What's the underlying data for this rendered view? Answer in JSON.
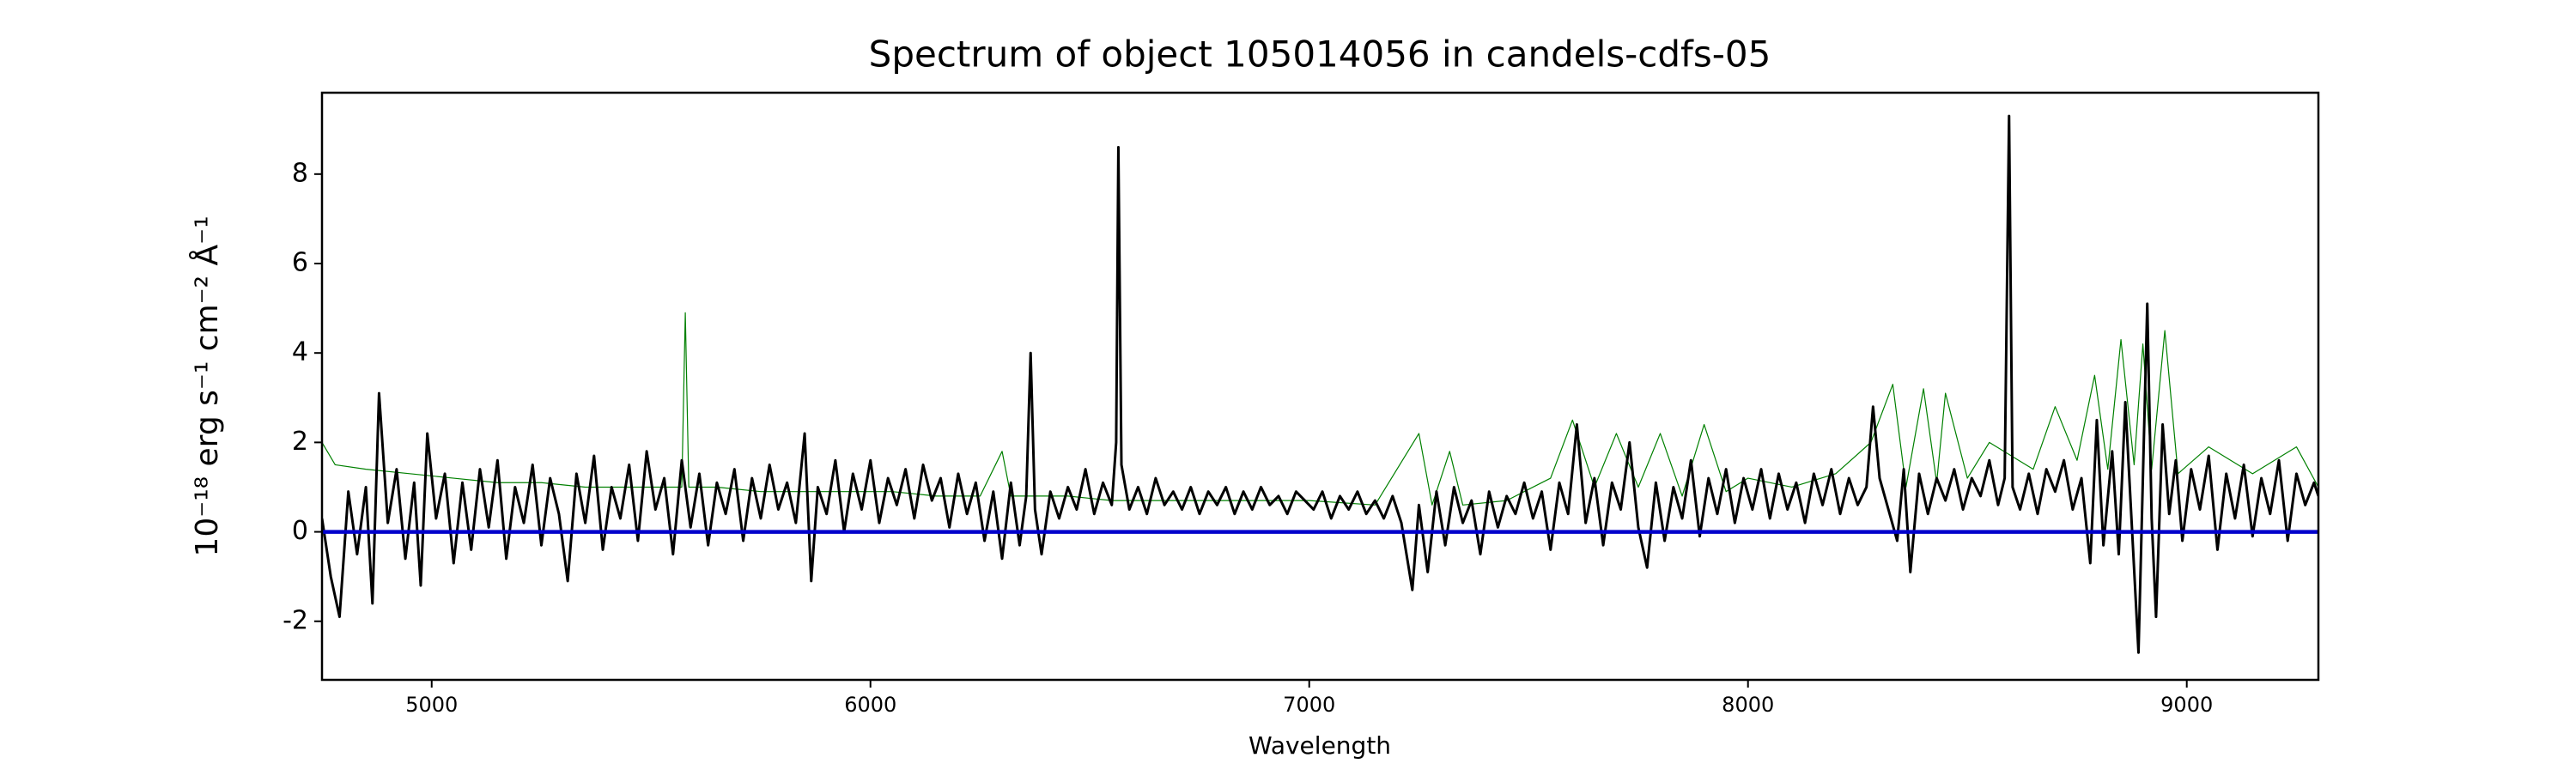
{
  "chart_data": {
    "type": "line",
    "title": "Spectrum of object 105014056 in candels-cdfs-05",
    "x_label": "Wavelength",
    "y_label": "10⁻¹⁸ erg s⁻¹ cm⁻² Å⁻¹",
    "xlim": [
      4750,
      9300
    ],
    "xticks": [
      5000,
      6000,
      7000,
      8000,
      9000
    ],
    "ylim": [
      -3.31,
      9.82
    ],
    "yticks": [
      -2,
      0,
      2,
      4,
      6,
      8
    ],
    "series": [
      {
        "color": "#008000",
        "width": 1.2,
        "x": [
          4750,
          4780,
          4850,
          4950,
          5050,
          5150,
          5250,
          5350,
          5450,
          5550,
          5570,
          5578,
          5586,
          5650,
          5750,
          5850,
          5950,
          6050,
          6150,
          6250,
          6300,
          6320,
          6450,
          6550,
          6700,
          6850,
          7000,
          7150,
          7250,
          7280,
          7320,
          7350,
          7450,
          7550,
          7600,
          7650,
          7700,
          7750,
          7800,
          7850,
          7900,
          7950,
          8000,
          8100,
          8200,
          8280,
          8330,
          8360,
          8400,
          8430,
          8450,
          8500,
          8550,
          8650,
          8700,
          8750,
          8790,
          8820,
          8850,
          8880,
          8900,
          8920,
          8950,
          8980,
          9050,
          9150,
          9250,
          9300
        ],
        "values": [
          2.0,
          1.5,
          1.4,
          1.3,
          1.2,
          1.1,
          1.1,
          1.0,
          1.0,
          1.0,
          1.0,
          4.9,
          1.0,
          1.0,
          0.9,
          0.9,
          0.9,
          0.9,
          0.8,
          0.8,
          1.8,
          0.8,
          0.8,
          0.7,
          0.7,
          0.7,
          0.7,
          0.6,
          2.2,
          0.6,
          1.8,
          0.6,
          0.7,
          1.2,
          2.5,
          1.0,
          2.2,
          1.0,
          2.2,
          0.8,
          2.4,
          0.9,
          1.2,
          1.0,
          1.3,
          2.0,
          3.3,
          1.0,
          3.2,
          1.1,
          3.1,
          1.2,
          2.0,
          1.4,
          2.8,
          1.6,
          3.5,
          1.4,
          4.3,
          1.5,
          4.2,
          1.4,
          4.5,
          1.3,
          1.9,
          1.3,
          1.9,
          1.0
        ]
      },
      {
        "color": "#000000",
        "width": 3,
        "x": [
          4750,
          4770,
          4790,
          4810,
          4830,
          4850,
          4865,
          4880,
          4900,
          4920,
          4940,
          4960,
          4975,
          4990,
          5010,
          5030,
          5050,
          5070,
          5090,
          5110,
          5130,
          5150,
          5170,
          5190,
          5210,
          5230,
          5250,
          5270,
          5290,
          5310,
          5330,
          5350,
          5370,
          5390,
          5410,
          5430,
          5450,
          5470,
          5490,
          5510,
          5530,
          5550,
          5570,
          5590,
          5610,
          5630,
          5650,
          5670,
          5690,
          5710,
          5730,
          5750,
          5770,
          5790,
          5810,
          5830,
          5850,
          5865,
          5880,
          5900,
          5920,
          5940,
          5960,
          5980,
          6000,
          6020,
          6040,
          6060,
          6080,
          6100,
          6120,
          6140,
          6160,
          6180,
          6200,
          6220,
          6240,
          6260,
          6280,
          6300,
          6320,
          6340,
          6355,
          6365,
          6375,
          6390,
          6410,
          6430,
          6450,
          6470,
          6490,
          6510,
          6530,
          6550,
          6560,
          6565,
          6572,
          6590,
          6610,
          6630,
          6650,
          6670,
          6690,
          6710,
          6730,
          6750,
          6770,
          6790,
          6810,
          6830,
          6850,
          6870,
          6890,
          6910,
          6930,
          6950,
          6970,
          6990,
          7010,
          7030,
          7050,
          7070,
          7090,
          7110,
          7130,
          7150,
          7170,
          7190,
          7210,
          7235,
          7250,
          7270,
          7290,
          7310,
          7330,
          7350,
          7370,
          7390,
          7410,
          7430,
          7450,
          7470,
          7490,
          7510,
          7530,
          7550,
          7570,
          7590,
          7610,
          7630,
          7650,
          7670,
          7690,
          7710,
          7730,
          7750,
          7770,
          7790,
          7810,
          7830,
          7850,
          7870,
          7890,
          7910,
          7930,
          7950,
          7970,
          7990,
          8010,
          8030,
          8050,
          8070,
          8090,
          8110,
          8130,
          8150,
          8170,
          8190,
          8210,
          8230,
          8250,
          8270,
          8285,
          8300,
          8320,
          8340,
          8355,
          8370,
          8390,
          8410,
          8430,
          8450,
          8470,
          8490,
          8510,
          8530,
          8550,
          8570,
          8585,
          8595,
          8603,
          8620,
          8640,
          8660,
          8680,
          8700,
          8720,
          8740,
          8760,
          8780,
          8795,
          8810,
          8830,
          8845,
          8860,
          8875,
          8890,
          8900,
          8910,
          8920,
          8930,
          8945,
          8960,
          8975,
          8990,
          9010,
          9030,
          9050,
          9070,
          9090,
          9110,
          9130,
          9150,
          9170,
          9190,
          9210,
          9230,
          9250,
          9270,
          9290,
          9300
        ],
        "values": [
          0.3,
          -1.0,
          -1.9,
          0.9,
          -0.5,
          1.0,
          -1.6,
          3.1,
          0.2,
          1.4,
          -0.6,
          1.1,
          -1.2,
          2.2,
          0.3,
          1.3,
          -0.7,
          1.1,
          -0.4,
          1.4,
          0.1,
          1.6,
          -0.6,
          1.0,
          0.2,
          1.5,
          -0.3,
          1.2,
          0.4,
          -1.1,
          1.3,
          0.2,
          1.7,
          -0.4,
          1.0,
          0.3,
          1.5,
          -0.2,
          1.8,
          0.5,
          1.2,
          -0.5,
          1.6,
          0.1,
          1.3,
          -0.3,
          1.1,
          0.4,
          1.4,
          -0.2,
          1.2,
          0.3,
          1.5,
          0.5,
          1.1,
          0.2,
          2.2,
          -1.1,
          1.0,
          0.4,
          1.6,
          0.0,
          1.3,
          0.5,
          1.6,
          0.2,
          1.2,
          0.6,
          1.4,
          0.3,
          1.5,
          0.7,
          1.2,
          0.1,
          1.3,
          0.4,
          1.1,
          -0.2,
          0.9,
          -0.6,
          1.1,
          -0.3,
          0.8,
          4.0,
          0.5,
          -0.5,
          0.9,
          0.3,
          1.0,
          0.5,
          1.4,
          0.4,
          1.1,
          0.6,
          2.0,
          8.6,
          1.5,
          0.5,
          1.0,
          0.4,
          1.2,
          0.6,
          0.9,
          0.5,
          1.0,
          0.4,
          0.9,
          0.6,
          1.0,
          0.4,
          0.9,
          0.5,
          1.0,
          0.6,
          0.8,
          0.4,
          0.9,
          0.7,
          0.5,
          0.9,
          0.3,
          0.8,
          0.5,
          0.9,
          0.4,
          0.7,
          0.3,
          0.8,
          0.2,
          -1.3,
          0.6,
          -0.9,
          0.9,
          -0.3,
          1.0,
          0.2,
          0.7,
          -0.5,
          0.9,
          0.1,
          0.8,
          0.4,
          1.1,
          0.3,
          0.9,
          -0.4,
          1.1,
          0.4,
          2.4,
          0.2,
          1.2,
          -0.3,
          1.1,
          0.5,
          2.0,
          0.1,
          -0.8,
          1.1,
          -0.2,
          1.0,
          0.3,
          1.6,
          -0.1,
          1.2,
          0.4,
          1.4,
          0.2,
          1.2,
          0.5,
          1.4,
          0.3,
          1.3,
          0.5,
          1.1,
          0.2,
          1.3,
          0.6,
          1.4,
          0.4,
          1.2,
          0.6,
          1.0,
          2.8,
          1.2,
          0.5,
          -0.2,
          1.4,
          -0.9,
          1.3,
          0.4,
          1.2,
          0.7,
          1.4,
          0.5,
          1.2,
          0.8,
          1.6,
          0.6,
          1.2,
          9.3,
          1.0,
          0.5,
          1.3,
          0.4,
          1.4,
          0.9,
          1.6,
          0.5,
          1.2,
          -0.7,
          2.5,
          -0.3,
          1.8,
          -0.5,
          2.9,
          0.1,
          -2.7,
          1.2,
          5.1,
          0.3,
          -1.9,
          2.4,
          0.4,
          1.6,
          -0.2,
          1.4,
          0.5,
          1.7,
          -0.4,
          1.3,
          0.3,
          1.5,
          -0.1,
          1.2,
          0.4,
          1.6,
          -0.2,
          1.3,
          0.6,
          1.1,
          0.8
        ]
      },
      {
        "color": "#0000cc",
        "width": 4.5,
        "x": [
          4750,
          9300
        ],
        "values": [
          0,
          0
        ]
      }
    ]
  }
}
